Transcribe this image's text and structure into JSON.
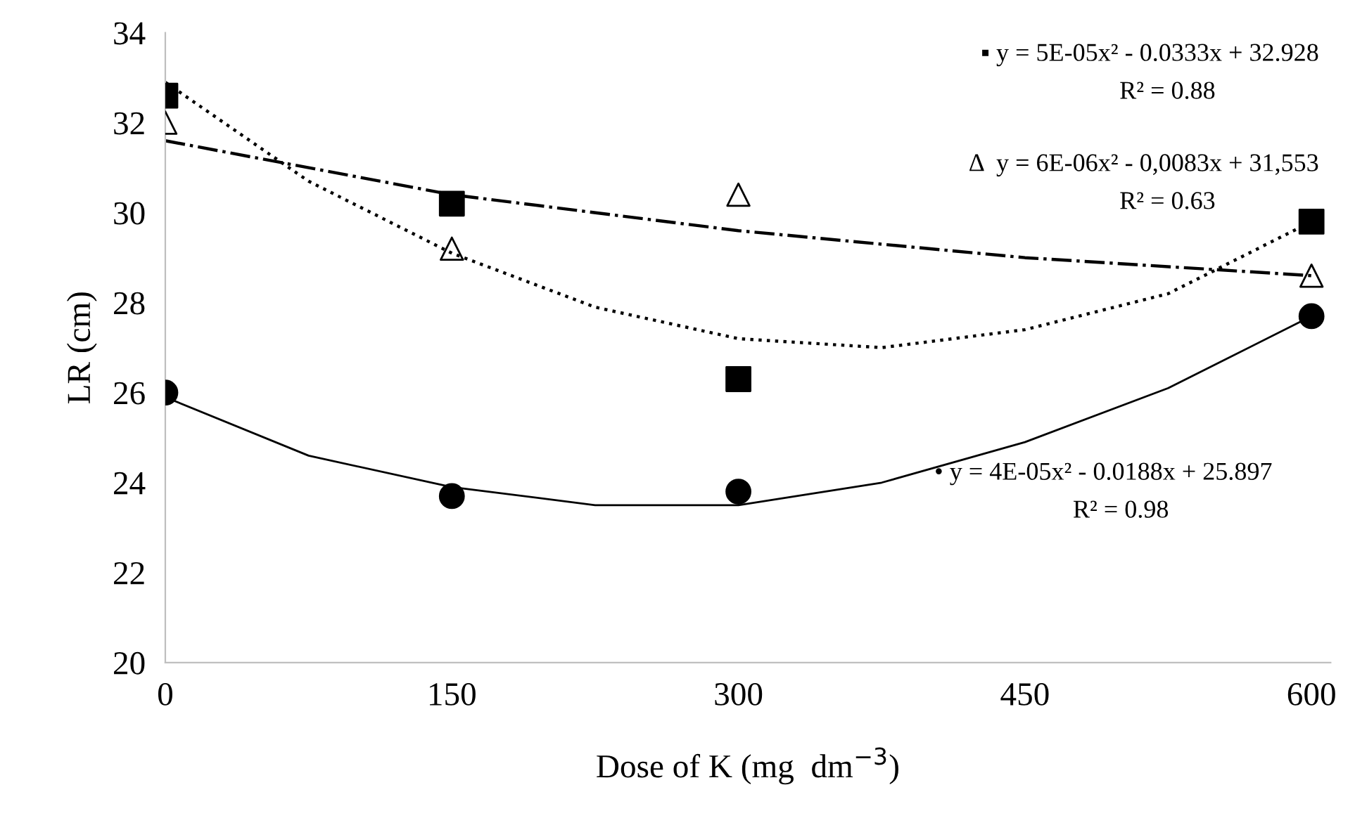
{
  "chart_data": {
    "type": "scatter",
    "xlabel": "Dose of K (mg  dm$^{−3}$)",
    "ylabel": "LR (cm)",
    "xlim": [
      0,
      610
    ],
    "xticks": [
      0,
      150,
      300,
      450,
      600
    ],
    "ylim": [
      20,
      34
    ],
    "yticks": [
      20,
      22,
      24,
      26,
      28,
      30,
      32,
      34
    ],
    "grid": false,
    "legend": false,
    "series": [
      {
        "marker": "square",
        "color": "#000000",
        "x": [
          0,
          150,
          300,
          600
        ],
        "values": [
          32.6,
          30.2,
          26.3,
          29.8
        ]
      },
      {
        "marker": "triangle",
        "color": "#000000",
        "x": [
          0,
          150,
          300,
          600
        ],
        "values": [
          32.0,
          29.2,
          30.4,
          28.6
        ]
      },
      {
        "marker": "circle",
        "color": "#000000",
        "x": [
          0,
          150,
          300,
          600
        ],
        "values": [
          26.0,
          23.7,
          23.8,
          27.7
        ]
      },
      {
        "type": "line",
        "line_style": "dotted",
        "color": "#000000",
        "x": [
          0,
          75,
          150,
          225,
          300,
          375,
          450,
          525,
          600
        ],
        "values": [
          32.9,
          30.7,
          29.1,
          27.9,
          27.2,
          27.0,
          27.4,
          28.2,
          29.8
        ]
      },
      {
        "type": "line",
        "line_style": "dashdot",
        "color": "#000000",
        "x": [
          0,
          150,
          300,
          450,
          600
        ],
        "values": [
          31.6,
          30.4,
          29.6,
          29.0,
          28.6
        ]
      },
      {
        "type": "line",
        "line_style": "solid",
        "color": "#000000",
        "x": [
          0,
          75,
          150,
          225,
          300,
          375,
          450,
          525,
          600
        ],
        "values": [
          25.9,
          24.6,
          23.9,
          23.5,
          23.5,
          24.0,
          24.9,
          26.1,
          27.7
        ]
      }
    ],
    "annotations": [
      "▪ y = 5E-05x² - 0.0333x + 32.928",
      "R² = 0.88",
      "Δ  y = 6E-06x² - 0,0083x + 31,553",
      "R² = 0.63",
      "• y = 4E-05x² - 0.0188x + 25.897",
      "R² = 0.98"
    ]
  }
}
